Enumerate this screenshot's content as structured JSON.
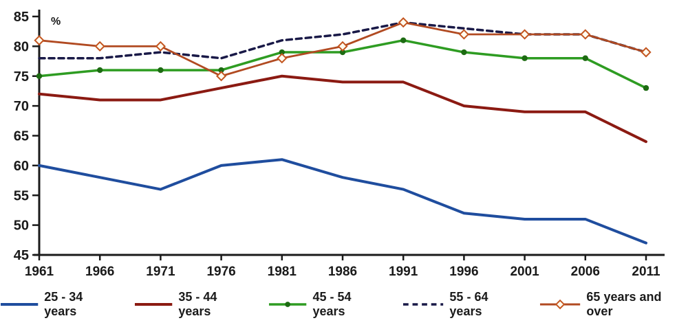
{
  "chart_data": {
    "type": "line",
    "title": "",
    "xlabel": "",
    "ylabel": "%",
    "x": [
      1961,
      1966,
      1971,
      1976,
      1981,
      1986,
      1991,
      1996,
      2001,
      2006,
      2011
    ],
    "ylim": [
      45,
      85
    ],
    "yticks": [
      45,
      50,
      55,
      60,
      65,
      70,
      75,
      80,
      85
    ],
    "grid": false,
    "legend_position": "bottom",
    "axis_color": "#1a1a1a",
    "series": [
      {
        "name": "25 - 34 years",
        "color": "#1F4D9E",
        "style": "solid",
        "marker": "none",
        "values": [
          60,
          58,
          56,
          60,
          61,
          58,
          56,
          52,
          51,
          51,
          47
        ]
      },
      {
        "name": "35 - 44 years",
        "color": "#8B1A12",
        "style": "solid",
        "marker": "none",
        "values": [
          72,
          71,
          71,
          73,
          75,
          74,
          74,
          70,
          69,
          69,
          64
        ]
      },
      {
        "name": "45 - 54 years",
        "color": "#2E9C22",
        "style": "solid",
        "marker": "dot",
        "marker_color": "#1D6B12",
        "values": [
          75,
          76,
          76,
          76,
          79,
          79,
          81,
          79,
          78,
          78,
          73
        ]
      },
      {
        "name": "55 - 64 years",
        "color": "#191947",
        "style": "dashed",
        "marker": "none",
        "values": [
          78,
          78,
          79,
          78,
          81,
          82,
          84,
          83,
          82,
          82,
          79
        ]
      },
      {
        "name": "65 years and over",
        "color": "#B14A21",
        "style": "solid",
        "marker": "diamond",
        "marker_fill": "#FFFBEF",
        "marker_stroke": "#C3551F",
        "values": [
          81,
          80,
          80,
          75,
          78,
          80,
          84,
          82,
          82,
          82,
          79
        ]
      }
    ]
  }
}
